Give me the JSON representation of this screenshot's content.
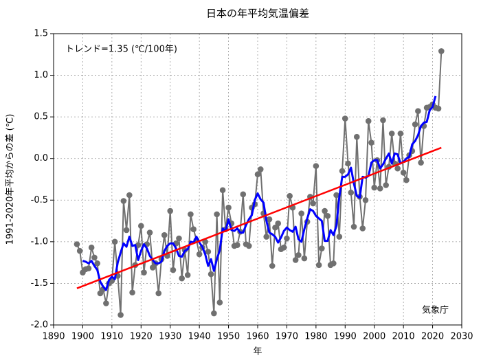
{
  "chart_data": {
    "type": "line",
    "title": "日本の年平均気温偏差",
    "x_label": "年",
    "y_label": "1991-2020年平均からの差 (℃)",
    "annotation": "トレンド=1.35 (℃/100年)",
    "source": "気象庁",
    "x": [
      1898,
      1899,
      1900,
      1901,
      1902,
      1903,
      1904,
      1905,
      1906,
      1907,
      1908,
      1909,
      1910,
      1911,
      1912,
      1913,
      1914,
      1915,
      1916,
      1917,
      1918,
      1919,
      1920,
      1921,
      1922,
      1923,
      1924,
      1925,
      1926,
      1927,
      1928,
      1929,
      1930,
      1931,
      1932,
      1933,
      1934,
      1935,
      1936,
      1937,
      1938,
      1939,
      1940,
      1941,
      1942,
      1943,
      1944,
      1945,
      1946,
      1947,
      1948,
      1949,
      1950,
      1951,
      1952,
      1953,
      1954,
      1955,
      1956,
      1957,
      1958,
      1959,
      1960,
      1961,
      1962,
      1963,
      1964,
      1965,
      1966,
      1967,
      1968,
      1969,
      1970,
      1971,
      1972,
      1973,
      1974,
      1975,
      1976,
      1977,
      1978,
      1979,
      1980,
      1981,
      1982,
      1983,
      1984,
      1985,
      1986,
      1987,
      1988,
      1989,
      1990,
      1991,
      1992,
      1993,
      1994,
      1995,
      1996,
      1997,
      1998,
      1999,
      2000,
      2001,
      2002,
      2003,
      2004,
      2005,
      2006,
      2007,
      2008,
      2009,
      2010,
      2011,
      2012,
      2013,
      2014,
      2015,
      2016,
      2017,
      2018,
      2019,
      2020,
      2021,
      2022,
      2023
    ],
    "series": [
      {
        "color": "#707070",
        "markers": true,
        "values": [
          -1.03,
          -1.11,
          -1.37,
          -1.33,
          -1.32,
          -1.07,
          -1.19,
          -1.26,
          -1.62,
          -1.57,
          -1.74,
          -1.5,
          -1.47,
          -1.0,
          -1.41,
          -1.88,
          -0.51,
          -0.86,
          -0.44,
          -1.61,
          -1.28,
          -1.04,
          -0.81,
          -1.37,
          -1.03,
          -0.89,
          -1.31,
          -1.26,
          -1.62,
          -1.21,
          -0.92,
          -1.17,
          -0.63,
          -1.34,
          -1.02,
          -0.96,
          -1.44,
          -1.1,
          -1.4,
          -0.67,
          -0.85,
          -0.98,
          -1.15,
          -1.07,
          -1.0,
          -1.12,
          -1.39,
          -1.86,
          -0.67,
          -1.73,
          -0.38,
          -0.85,
          -0.59,
          -0.78,
          -1.05,
          -1.04,
          -0.88,
          -0.43,
          -1.03,
          -1.05,
          -0.59,
          -0.55,
          -0.19,
          -0.13,
          -0.66,
          -0.94,
          -0.73,
          -1.29,
          -0.83,
          -0.78,
          -1.09,
          -1.07,
          -0.96,
          -0.45,
          -0.59,
          -1.22,
          -1.16,
          -0.66,
          -1.2,
          -0.76,
          -0.46,
          -0.54,
          -0.09,
          -1.28,
          -1.08,
          -0.63,
          -0.69,
          -1.28,
          -1.26,
          -0.44,
          -0.94,
          -0.15,
          0.48,
          -0.06,
          -0.41,
          -0.82,
          0.26,
          -0.46,
          -0.84,
          -0.5,
          0.45,
          0.19,
          -0.35,
          -0.02,
          -0.36,
          0.46,
          -0.32,
          -0.1,
          0.3,
          -0.06,
          -0.12,
          0.3,
          -0.17,
          -0.26,
          0.04,
          0.09,
          0.41,
          0.57,
          -0.05,
          0.39,
          0.61,
          0.62,
          0.65,
          0.61,
          0.6,
          1.29
        ]
      },
      {
        "color": "#0000ff",
        "markers": false,
        "values": [
          null,
          null,
          -1.23,
          -1.24,
          -1.26,
          -1.23,
          -1.29,
          -1.34,
          -1.48,
          -1.54,
          -1.58,
          -1.46,
          -1.42,
          -1.45,
          -1.25,
          -1.13,
          -1.02,
          -1.06,
          -0.94,
          -1.05,
          -1.04,
          -1.22,
          -1.11,
          -1.03,
          -1.08,
          -1.17,
          -1.22,
          -1.26,
          -1.26,
          -1.24,
          -1.11,
          -1.05,
          -1.02,
          -1.02,
          -1.08,
          -1.17,
          -1.18,
          -1.11,
          -1.09,
          -1.0,
          -1.01,
          -0.94,
          -1.01,
          -1.06,
          -1.15,
          -1.29,
          -1.21,
          -1.35,
          -1.21,
          -1.1,
          -0.84,
          -0.87,
          -0.73,
          -0.86,
          -0.87,
          -0.84,
          -0.89,
          -0.89,
          -0.8,
          -0.73,
          -0.68,
          -0.5,
          -0.42,
          -0.49,
          -0.53,
          -0.75,
          -0.89,
          -0.91,
          -0.94,
          -1.01,
          -0.95,
          -0.87,
          -0.83,
          -0.86,
          -0.88,
          -0.82,
          -0.97,
          -1.0,
          -0.85,
          -0.72,
          -0.61,
          -0.63,
          -0.69,
          -0.72,
          -0.75,
          -0.99,
          -0.99,
          -0.86,
          -0.92,
          -0.81,
          -0.46,
          -0.22,
          -0.22,
          -0.19,
          -0.11,
          -0.3,
          -0.45,
          -0.47,
          -0.22,
          -0.23,
          -0.21,
          -0.05,
          -0.02,
          -0.02,
          -0.12,
          -0.07,
          0.0,
          0.06,
          -0.06,
          0.06,
          0.05,
          -0.06,
          -0.04,
          0.0,
          0.02,
          0.17,
          0.21,
          0.28,
          0.39,
          0.43,
          0.44,
          0.58,
          0.62,
          0.75,
          null,
          null
        ]
      }
    ],
    "trend_line": {
      "color": "#ff0000",
      "x": [
        1898,
        2023
      ],
      "values": [
        -1.56,
        0.13
      ]
    },
    "xlim": [
      1890,
      2030
    ],
    "xticks": [
      1890,
      1900,
      1910,
      1920,
      1930,
      1940,
      1950,
      1960,
      1970,
      1980,
      1990,
      2000,
      2010,
      2020,
      2030
    ],
    "ylim": [
      -2,
      1.5
    ],
    "yticks": [
      1.5,
      {
        "value": 1,
        "label": "1.0"
      },
      0.5,
      {
        "value": 0,
        "label": "0.0"
      },
      -0.5,
      {
        "value": -1,
        "label": "-1.0"
      },
      -1.5,
      {
        "value": -2,
        "label": "-2.0"
      }
    ],
    "grid": true
  }
}
